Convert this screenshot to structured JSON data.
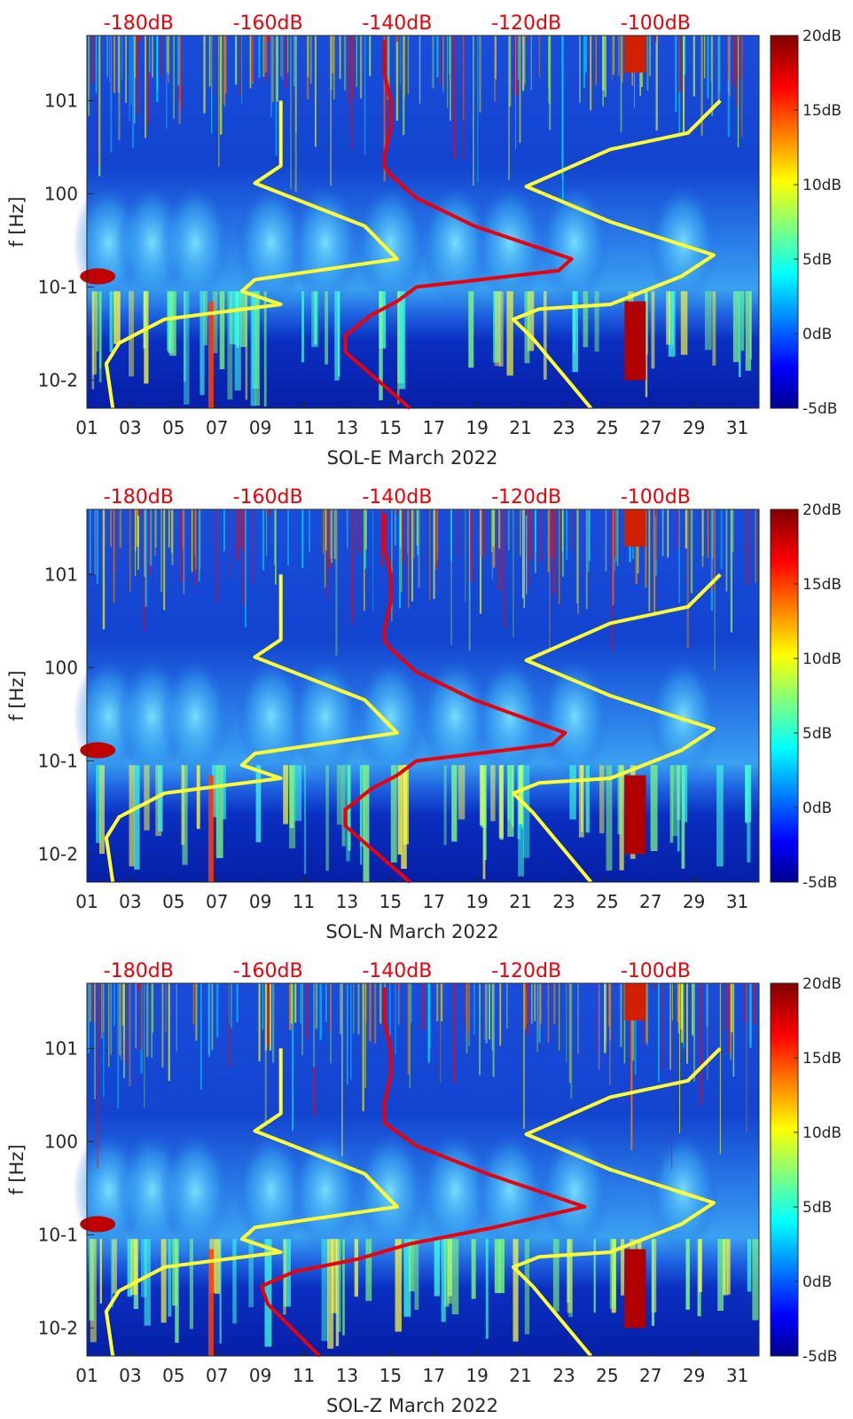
{
  "chart_data": [
    {
      "type": "heatmap",
      "xlabel": "SOL-E March 2022",
      "ylabel": "f [Hz]",
      "x_ticks": [
        "01",
        "03",
        "05",
        "07",
        "09",
        "11",
        "13",
        "15",
        "17",
        "19",
        "21",
        "23",
        "25",
        "27",
        "29",
        "31"
      ],
      "y_ticks": [
        "10-2",
        "10-1",
        "100",
        "101"
      ],
      "y_tick_exponents": [
        -2,
        -1,
        0,
        1
      ],
      "ylim_hz": [
        0.005,
        50
      ],
      "xlim_day": [
        1,
        32
      ],
      "y_scale": "log",
      "top_axis_labels": [
        "-180dB",
        "-160dB",
        "-140dB",
        "-120dB",
        "-100dB"
      ],
      "top_axis_values_db": [
        -180,
        -160,
        -140,
        -120,
        -100
      ],
      "colorbar": {
        "labels": [
          "20dB",
          "15dB",
          "10dB",
          "5dB",
          "0dB",
          "-5dB"
        ],
        "range_db": [
          -5,
          20
        ],
        "colormap": "jet"
      },
      "series": [
        {
          "color": "#ffff33",
          "values": [
            [
              -158,
              10
            ],
            [
              -158,
              2
            ],
            [
              -162,
              1.3
            ],
            [
              -145,
              0.45
            ],
            [
              -140,
              0.2
            ],
            [
              -162,
              0.12
            ],
            [
              -164,
              0.09
            ],
            [
              -158,
              0.065
            ],
            [
              -176,
              0.045
            ],
            [
              -183,
              0.025
            ],
            [
              -185,
              0.015
            ],
            [
              -184,
              0.005
            ]
          ]
        },
        {
          "color": "#e8000b",
          "values": [
            [
              -138,
              0.005
            ],
            [
              -148,
              0.02
            ],
            [
              -148,
              0.03
            ],
            [
              -144,
              0.05
            ],
            [
              -140,
              0.07
            ],
            [
              -137,
              0.1
            ],
            [
              -115,
              0.15
            ],
            [
              -113,
              0.2
            ],
            [
              -128,
              0.45
            ],
            [
              -137,
              0.9
            ],
            [
              -141,
              1.6
            ],
            [
              -142,
              2
            ],
            [
              -142,
              2.5
            ],
            [
              -141,
              5
            ],
            [
              -141,
              10
            ],
            [
              -142,
              20
            ],
            [
              -142,
              45
            ]
          ]
        },
        {
          "color": "#ffff33",
          "values": [
            [
              -110,
              0.005
            ],
            [
              -119,
              0.028
            ],
            [
              -122,
              0.045
            ],
            [
              -118,
              0.058
            ],
            [
              -107,
              0.065
            ],
            [
              -96,
              0.13
            ],
            [
              -91,
              0.22
            ],
            [
              -107,
              0.5
            ],
            [
              -120,
              1.2
            ],
            [
              -107,
              3
            ],
            [
              -95,
              4.5
            ],
            [
              -90,
              10
            ]
          ]
        }
      ]
    },
    {
      "type": "heatmap",
      "xlabel": "SOL-N March 2022",
      "ylabel": "f [Hz]",
      "x_ticks": [
        "01",
        "03",
        "05",
        "07",
        "09",
        "11",
        "13",
        "15",
        "17",
        "19",
        "21",
        "23",
        "25",
        "27",
        "29",
        "31"
      ],
      "y_ticks": [
        "10-2",
        "10-1",
        "100",
        "101"
      ],
      "y_tick_exponents": [
        -2,
        -1,
        0,
        1
      ],
      "ylim_hz": [
        0.005,
        50
      ],
      "xlim_day": [
        1,
        32
      ],
      "y_scale": "log",
      "top_axis_labels": [
        "-180dB",
        "-160dB",
        "-140dB",
        "-120dB",
        "-100dB"
      ],
      "top_axis_values_db": [
        -180,
        -160,
        -140,
        -120,
        -100
      ],
      "colorbar": {
        "labels": [
          "20dB",
          "15dB",
          "10dB",
          "5dB",
          "0dB",
          "-5dB"
        ],
        "range_db": [
          -5,
          20
        ],
        "colormap": "jet"
      },
      "series": [
        {
          "color": "#ffff33",
          "values": [
            [
              -158,
              10
            ],
            [
              -158,
              2
            ],
            [
              -162,
              1.3
            ],
            [
              -145,
              0.45
            ],
            [
              -140,
              0.2
            ],
            [
              -162,
              0.12
            ],
            [
              -164,
              0.09
            ],
            [
              -158,
              0.065
            ],
            [
              -176,
              0.045
            ],
            [
              -183,
              0.025
            ],
            [
              -185,
              0.015
            ],
            [
              -184,
              0.005
            ]
          ]
        },
        {
          "color": "#e8000b",
          "values": [
            [
              -138,
              0.005
            ],
            [
              -148,
              0.02
            ],
            [
              -148,
              0.03
            ],
            [
              -144,
              0.05
            ],
            [
              -140,
              0.07
            ],
            [
              -137,
              0.1
            ],
            [
              -116,
              0.15
            ],
            [
              -114,
              0.2
            ],
            [
              -128,
              0.45
            ],
            [
              -137,
              0.9
            ],
            [
              -141,
              1.6
            ],
            [
              -142,
              2
            ],
            [
              -142,
              2.5
            ],
            [
              -141,
              5
            ],
            [
              -141,
              10
            ],
            [
              -142,
              20
            ],
            [
              -142,
              45
            ]
          ]
        },
        {
          "color": "#ffff33",
          "values": [
            [
              -110,
              0.005
            ],
            [
              -119,
              0.028
            ],
            [
              -122,
              0.045
            ],
            [
              -118,
              0.058
            ],
            [
              -107,
              0.065
            ],
            [
              -96,
              0.13
            ],
            [
              -91,
              0.22
            ],
            [
              -107,
              0.5
            ],
            [
              -120,
              1.2
            ],
            [
              -107,
              3
            ],
            [
              -95,
              4.5
            ],
            [
              -90,
              10
            ]
          ]
        }
      ]
    },
    {
      "type": "heatmap",
      "xlabel": "SOL-Z March 2022",
      "ylabel": "f [Hz]",
      "x_ticks": [
        "01",
        "03",
        "05",
        "07",
        "09",
        "11",
        "13",
        "15",
        "17",
        "19",
        "21",
        "23",
        "25",
        "27",
        "29",
        "31"
      ],
      "y_ticks": [
        "10-2",
        "10-1",
        "100",
        "101"
      ],
      "y_tick_exponents": [
        -2,
        -1,
        0,
        1
      ],
      "ylim_hz": [
        0.005,
        50
      ],
      "xlim_day": [
        1,
        32
      ],
      "y_scale": "log",
      "top_axis_labels": [
        "-180dB",
        "-160dB",
        "-140dB",
        "-120dB",
        "-100dB"
      ],
      "top_axis_values_db": [
        -180,
        -160,
        -140,
        -120,
        -100
      ],
      "colorbar": {
        "labels": [
          "20dB",
          "15dB",
          "10dB",
          "5dB",
          "0dB",
          "-5dB"
        ],
        "range_db": [
          -5,
          20
        ],
        "colormap": "jet"
      },
      "series": [
        {
          "color": "#ffff33",
          "values": [
            [
              -158,
              10
            ],
            [
              -158,
              2
            ],
            [
              -162,
              1.3
            ],
            [
              -145,
              0.45
            ],
            [
              -140,
              0.2
            ],
            [
              -162,
              0.12
            ],
            [
              -164,
              0.09
            ],
            [
              -158,
              0.065
            ],
            [
              -176,
              0.045
            ],
            [
              -183,
              0.025
            ],
            [
              -185,
              0.015
            ],
            [
              -184,
              0.005
            ]
          ]
        },
        {
          "color": "#e8000b",
          "values": [
            [
              -152,
              0.005
            ],
            [
              -160,
              0.018
            ],
            [
              -161,
              0.028
            ],
            [
              -156,
              0.04
            ],
            [
              -146,
              0.055
            ],
            [
              -138,
              0.08
            ],
            [
              -125,
              0.12
            ],
            [
              -111,
              0.2
            ],
            [
              -126,
              0.45
            ],
            [
              -137,
              0.9
            ],
            [
              -142,
              1.6
            ],
            [
              -142,
              2
            ],
            [
              -142,
              2.5
            ],
            [
              -141,
              5
            ],
            [
              -141,
              10
            ],
            [
              -142,
              20
            ],
            [
              -142,
              45
            ]
          ]
        },
        {
          "color": "#ffff33",
          "values": [
            [
              -110,
              0.005
            ],
            [
              -119,
              0.028
            ],
            [
              -122,
              0.045
            ],
            [
              -118,
              0.058
            ],
            [
              -107,
              0.065
            ],
            [
              -96,
              0.13
            ],
            [
              -91,
              0.22
            ],
            [
              -107,
              0.5
            ],
            [
              -120,
              1.2
            ],
            [
              -107,
              3
            ],
            [
              -95,
              4.5
            ],
            [
              -90,
              10
            ]
          ]
        }
      ]
    }
  ]
}
